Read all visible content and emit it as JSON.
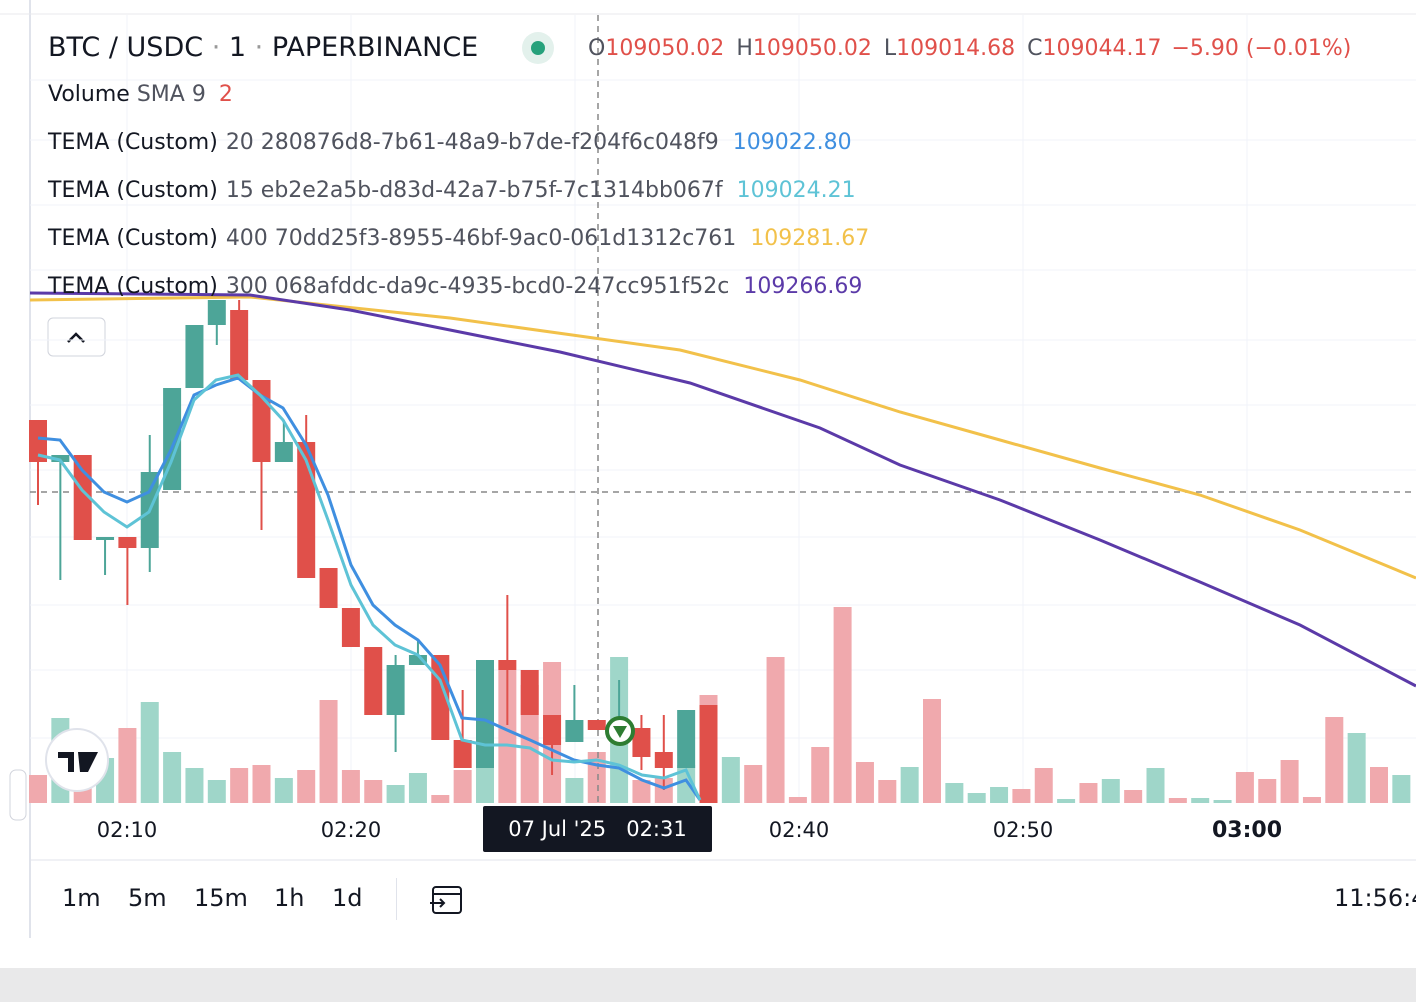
{
  "header": {
    "symbol": "BTC / USDC",
    "interval": "1",
    "exchange": "PAPERBINANCE",
    "ohlc": [
      {
        "label": "O",
        "value": "109050.02"
      },
      {
        "label": "H",
        "value": "109050.02"
      },
      {
        "label": "L",
        "value": "109014.68"
      },
      {
        "label": "C",
        "value": "109044.17"
      }
    ],
    "change": "−5.90 (−0.01%)"
  },
  "volume": {
    "name": "Volume",
    "params": "SMA 9",
    "value": "2"
  },
  "indicators": [
    {
      "name": "TEMA (Custom)",
      "params": "20 280876d8-7b61-48a9-b7de-f204f6c048f9",
      "value": "109022.80",
      "color": "#3f8fe0"
    },
    {
      "name": "TEMA (Custom)",
      "params": "15 eb2e2a5b-d83d-42a7-b75f-7c1314bb067f",
      "value": "109024.21",
      "color": "#5ec3d6"
    },
    {
      "name": "TEMA (Custom)",
      "params": "400 70dd25f3-8955-46bf-9ac0-061d1312c761",
      "value": "109281.67",
      "color": "#f2c14a"
    },
    {
      "name": "TEMA (Custom)",
      "params": "300 068afddc-da9c-4935-bcd0-247cc951f52c",
      "value": "109266.69",
      "color": "#5b3aa8"
    }
  ],
  "time_axis": {
    "labels": [
      "02:10",
      "02:20",
      "02:40",
      "02:50",
      "03:00"
    ],
    "crosshair_date": "07 Jul '25",
    "crosshair_time": "02:31"
  },
  "toolbar": {
    "intervals": [
      "1m",
      "5m",
      "15m",
      "1h",
      "1d"
    ],
    "clock": "11:56:4"
  }
}
